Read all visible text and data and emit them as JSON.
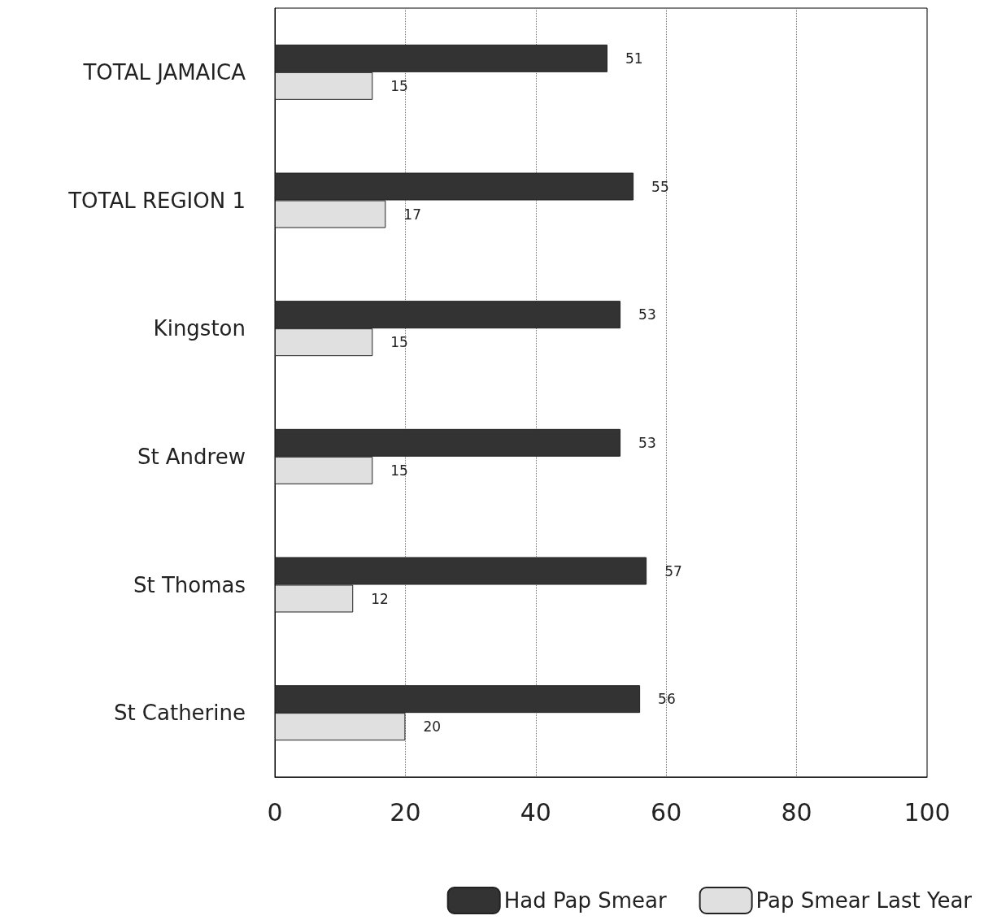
{
  "chart_data": {
    "type": "bar",
    "orientation": "horizontal",
    "categories": [
      "TOTAL JAMAICA",
      "TOTAL REGION 1",
      "Kingston",
      "St Andrew",
      "St Thomas",
      "St Catherine"
    ],
    "series": [
      {
        "name": "Had Pap Smear",
        "color": "#333333",
        "values": [
          51,
          55,
          53,
          53,
          57,
          56
        ]
      },
      {
        "name": "Pap Smear Last Year",
        "color": "#e0e0e0",
        "values": [
          15,
          17,
          15,
          15,
          12,
          20
        ]
      }
    ],
    "xlim": [
      0,
      100
    ],
    "xticks": [
      0,
      20,
      40,
      60,
      80,
      100
    ],
    "grid": "x",
    "legend": "bottom",
    "data_labels": true
  }
}
